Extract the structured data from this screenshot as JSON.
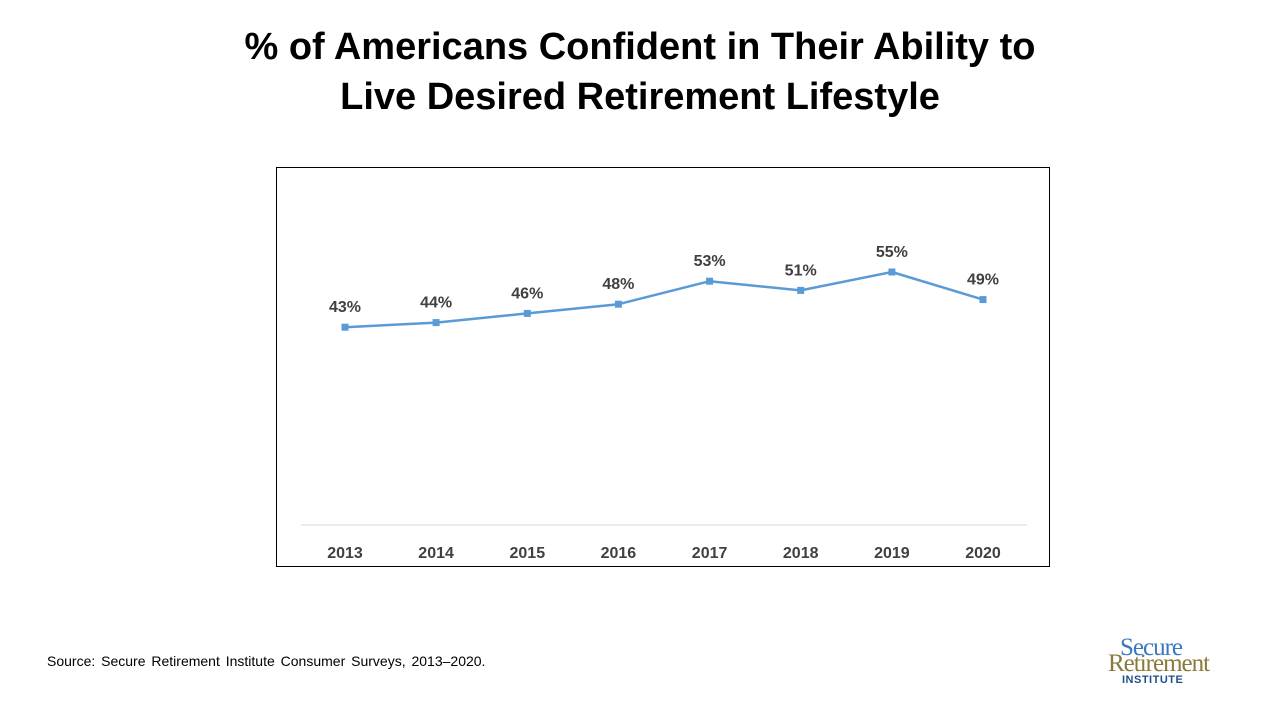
{
  "title": {
    "line1": "% of Americans Confident in Their Ability to",
    "line2": "Live Desired Retirement Lifestyle"
  },
  "source": "Source: Secure Retirement Institute Consumer Surveys, 2013–2020.",
  "logo": {
    "line1": "Secure",
    "line2": "Retirement",
    "line3": "INSTITUTE",
    "colors": {
      "secure": "#3a78c2",
      "retirement": "#8a7a3a",
      "institute": "#1f4f8a"
    }
  },
  "chart_data": {
    "type": "line",
    "title": "% of Americans Confident in Their Ability to Live Desired Retirement Lifestyle",
    "categories": [
      "2013",
      "2014",
      "2015",
      "2016",
      "2017",
      "2018",
      "2019",
      "2020"
    ],
    "series": [
      {
        "values": [
          43,
          44,
          46,
          48,
          53,
          51,
          55,
          49
        ],
        "data_labels": [
          "43%",
          "44%",
          "46%",
          "48%",
          "53%",
          "51%",
          "55%",
          "49%"
        ],
        "color": "#5b9bd5",
        "marker": "square"
      }
    ],
    "xlabel": "",
    "ylabel": "",
    "ylim": [
      0,
      60
    ],
    "grid": false,
    "legend": "none",
    "y_axis_visible": false
  }
}
